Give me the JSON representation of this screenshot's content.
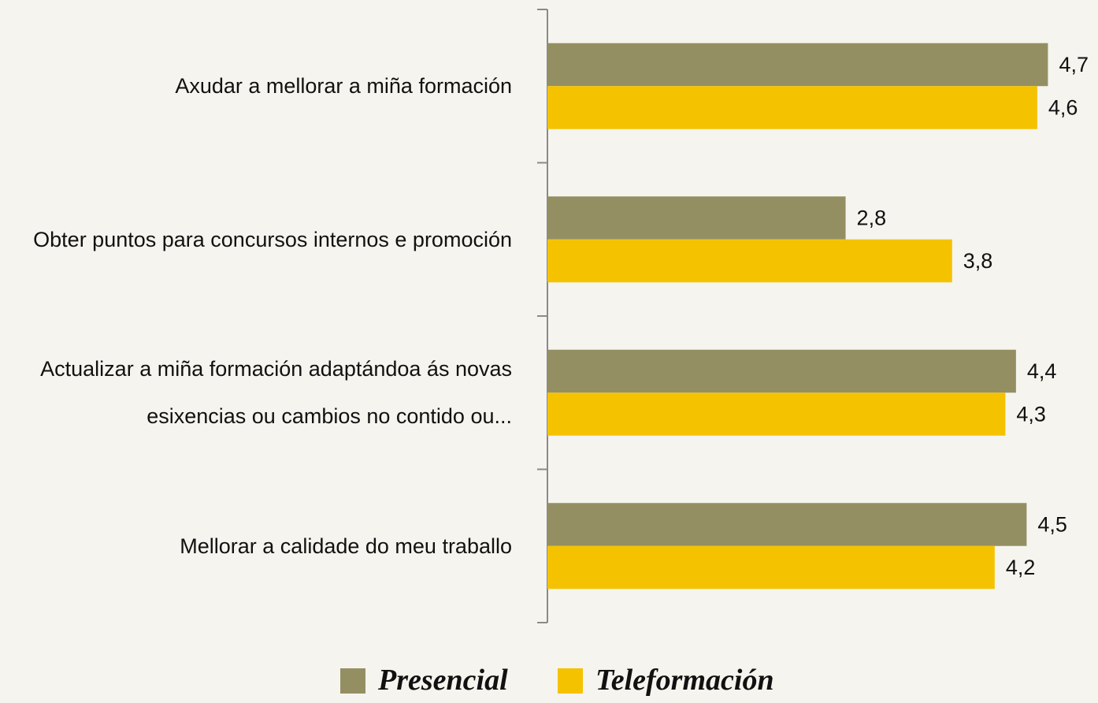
{
  "chart_data": {
    "type": "bar",
    "orientation": "horizontal",
    "categories": [
      "Axudar a mellorar a miña formación",
      "Obter puntos para concursos internos e promoción",
      "Actualizar a miña formación adaptándoa ás novas esixencias ou cambios no contido ou...",
      "Mellorar a calidade do meu traballo"
    ],
    "series": [
      {
        "name": "Presencial",
        "color": "#948f63",
        "values": [
          4.7,
          2.8,
          4.4,
          4.5
        ],
        "value_labels": [
          "4,7",
          "2,8",
          "4,4",
          "4,5"
        ]
      },
      {
        "name": "Teleformación",
        "color": "#f5c200",
        "values": [
          4.6,
          3.8,
          4.3,
          4.2
        ],
        "value_labels": [
          "4,6",
          "3,8",
          "4,3",
          "4,2"
        ]
      }
    ],
    "xlim": [
      0,
      5
    ],
    "legend": "bottom"
  }
}
